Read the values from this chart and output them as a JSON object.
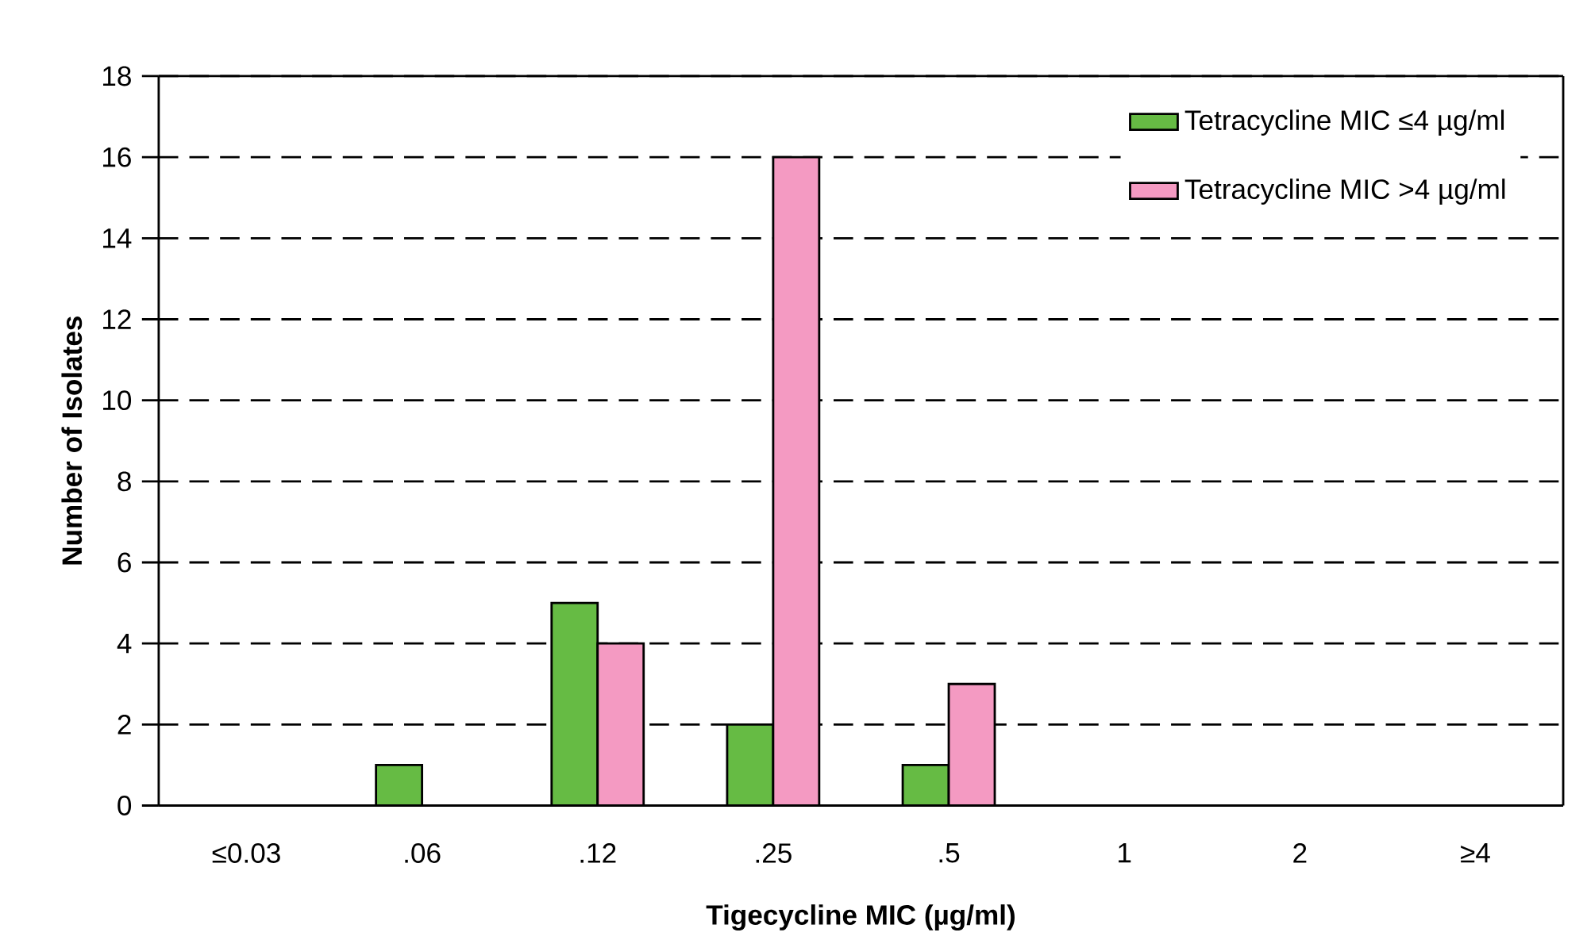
{
  "chart_data": {
    "type": "bar",
    "xlabel": "Tigecycline MIC (µg/ml)",
    "ylabel": "Number of Isolates",
    "categories": [
      "≤0.03",
      ".06",
      ".12",
      ".25",
      ".5",
      "1",
      "2",
      "≥4"
    ],
    "series": [
      {
        "name": "Tetracycline MIC ≤4 µg/ml",
        "color": "#66bb44",
        "values": [
          0,
          1,
          5,
          2,
          1,
          0,
          0,
          0
        ]
      },
      {
        "name": "Tetracycline MIC >4 µg/ml",
        "color": "#f49ac2",
        "values": [
          0,
          0,
          4,
          16,
          3,
          0,
          0,
          0
        ]
      }
    ],
    "ylim": [
      0,
      18
    ],
    "yticks": [
      0,
      2,
      4,
      6,
      8,
      10,
      12,
      14,
      16,
      18
    ],
    "grid": "y",
    "legend": "top right"
  }
}
